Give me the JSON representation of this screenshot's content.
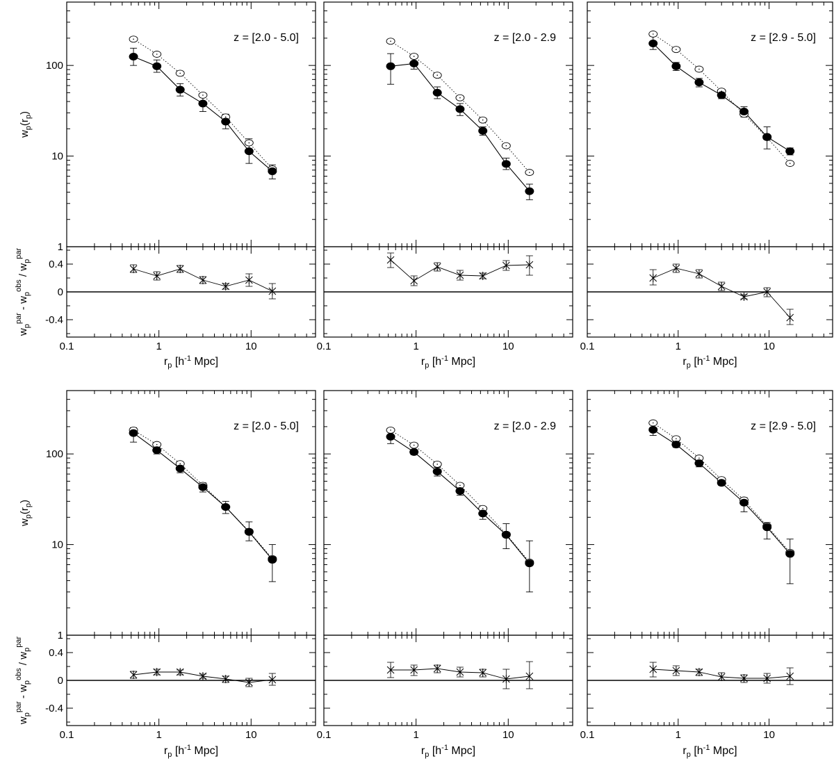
{
  "chart_data": {
    "type": "scatter",
    "x_scale": "log",
    "y_scale": "log",
    "xlim": [
      0.1,
      50
    ],
    "ylim": [
      1,
      500
    ],
    "residual_ylim": [
      -0.65,
      0.65
    ],
    "x_tick_labels": [
      "0.1",
      "1",
      "10"
    ],
    "y_tick_labels": [
      "1",
      "10",
      "100"
    ],
    "residual_tick_labels": [
      "0.4",
      "0",
      "-0.4"
    ],
    "xlabel": {
      "base": "r",
      "sub": "p",
      "text": " [h",
      "sup": "-1",
      "text2": " Mpc]"
    },
    "ylabel": {
      "base": "w",
      "sub": "p",
      "text": "(r",
      "sub2": "p",
      "text2": ")"
    },
    "residual_ylabel": {
      "a": "w",
      "a_sub": "p",
      "a_sup": "par",
      "b": " - w",
      "b_sub": "p",
      "b_sup": "obs",
      "c": " / w",
      "c_sub": "p",
      "c_sup": "par"
    },
    "colors": {
      "axis": "#000000",
      "data": "#000000",
      "open_marker": "#000000"
    },
    "panels": [
      {
        "label": "z = [2.0 - 5.0]",
        "x": [
          0.53,
          0.95,
          1.7,
          3.0,
          5.3,
          9.5,
          17.0
        ],
        "closed": [
          125,
          98,
          54,
          38,
          24,
          11.3,
          6.8
        ],
        "closed_err_up": [
          155,
          115,
          63,
          46,
          29,
          15.5,
          8.0
        ],
        "closed_err_dn": [
          100,
          84,
          46,
          31,
          20,
          8.3,
          5.6
        ],
        "open": [
          195,
          133,
          82,
          47,
          27,
          14,
          7.2
        ],
        "residual": [
          0.33,
          0.23,
          0.33,
          0.17,
          0.08,
          0.17,
          0.01
        ],
        "residual_err_up": [
          0.39,
          0.29,
          0.38,
          0.22,
          0.12,
          0.26,
          0.12
        ],
        "residual_err_dn": [
          0.28,
          0.17,
          0.28,
          0.12,
          0.04,
          0.08,
          -0.1
        ]
      },
      {
        "label": "z = [2.0 - 2.9",
        "x": [
          0.53,
          0.95,
          1.7,
          3.0,
          5.3,
          9.5,
          17.0
        ],
        "closed": [
          98,
          105,
          50,
          33,
          19,
          8.2,
          4.1
        ],
        "closed_err_up": [
          135,
          120,
          58,
          38,
          21,
          9.5,
          4.9
        ],
        "closed_err_dn": [
          62,
          91,
          43,
          28,
          17,
          7.1,
          3.3
        ],
        "open": [
          185,
          126,
          78,
          44,
          25,
          13,
          6.6
        ],
        "residual": [
          0.46,
          0.16,
          0.36,
          0.24,
          0.23,
          0.38,
          0.39
        ],
        "residual_err_up": [
          0.56,
          0.23,
          0.42,
          0.31,
          0.27,
          0.45,
          0.52
        ],
        "residual_err_dn": [
          0.35,
          0.09,
          0.3,
          0.17,
          0.19,
          0.31,
          0.24
        ]
      },
      {
        "label": "z = [2.9 - 5.0]",
        "x": [
          0.53,
          0.95,
          1.7,
          3.0,
          5.3,
          9.5,
          17.0
        ],
        "closed": [
          175,
          98,
          65,
          47,
          31,
          16.3,
          11.3
        ],
        "closed_err_up": [
          210,
          108,
          72,
          51,
          35,
          21,
          12.3
        ],
        "closed_err_dn": [
          150,
          88,
          58,
          43,
          27,
          12,
          10.3
        ],
        "open": [
          222,
          150,
          91,
          52,
          29,
          16,
          8.3
        ],
        "residual": [
          0.2,
          0.34,
          0.26,
          0.08,
          -0.07,
          0.0,
          -0.37
        ],
        "residual_err_up": [
          0.32,
          0.4,
          0.32,
          0.14,
          -0.04,
          0.06,
          -0.25
        ],
        "residual_err_dn": [
          0.1,
          0.28,
          0.2,
          0.02,
          -0.1,
          -0.07,
          -0.47
        ]
      },
      {
        "label": "z = [2.0 - 5.0]",
        "x": [
          0.53,
          0.95,
          1.7,
          3.0,
          5.3,
          9.5,
          17.0
        ],
        "closed": [
          170,
          110,
          69,
          43,
          26,
          13.8,
          6.8
        ],
        "closed_err_up": [
          195,
          120,
          77,
          48,
          30,
          17.8,
          10
        ],
        "closed_err_dn": [
          135,
          100,
          62,
          38,
          22,
          11,
          3.9
        ],
        "open": [
          183,
          127,
          78,
          45,
          26,
          14,
          7
        ],
        "residual": [
          0.08,
          0.12,
          0.12,
          0.06,
          0.02,
          -0.03,
          0.01
        ],
        "residual_err_up": [
          0.13,
          0.16,
          0.15,
          0.09,
          0.06,
          0.03,
          0.1
        ],
        "residual_err_dn": [
          0.03,
          0.08,
          0.08,
          0.03,
          -0.03,
          -0.09,
          -0.07
        ]
      },
      {
        "label": "z = [2.0 - 2.9",
        "x": [
          0.53,
          0.95,
          1.7,
          3.0,
          5.3,
          9.5,
          17.0
        ],
        "closed": [
          155,
          105,
          64,
          39,
          22,
          12.8,
          6.2
        ],
        "closed_err_up": [
          185,
          112,
          71,
          43,
          25,
          17,
          11
        ],
        "closed_err_dn": [
          130,
          98,
          57,
          35,
          19,
          9,
          3
        ],
        "open": [
          183,
          125,
          77,
          45,
          25,
          13,
          6.4
        ],
        "residual": [
          0.15,
          0.15,
          0.17,
          0.12,
          0.11,
          0.02,
          0.06
        ],
        "residual_err_up": [
          0.26,
          0.22,
          0.22,
          0.19,
          0.16,
          0.16,
          0.27
        ],
        "residual_err_dn": [
          0.04,
          0.07,
          0.11,
          0.05,
          0.05,
          -0.12,
          -0.12
        ]
      },
      {
        "label": "z = [2.9 - 5.0]",
        "x": [
          0.53,
          0.95,
          1.7,
          3.0,
          5.3,
          9.5,
          17.0
        ],
        "closed": [
          185,
          127,
          79,
          48,
          29,
          15.5,
          7.9
        ],
        "closed_err_up": [
          210,
          138,
          85,
          52,
          33,
          17.5,
          11.5
        ],
        "closed_err_dn": [
          160,
          118,
          72,
          45,
          23,
          11.5,
          3.7
        ],
        "open": [
          220,
          147,
          90,
          52,
          31,
          16,
          8.2
        ],
        "residual": [
          0.16,
          0.14,
          0.12,
          0.05,
          0.03,
          0.03,
          0.06
        ],
        "residual_err_up": [
          0.26,
          0.21,
          0.16,
          0.11,
          0.08,
          0.1,
          0.18
        ],
        "residual_err_dn": [
          0.05,
          0.07,
          0.07,
          0.0,
          -0.03,
          -0.04,
          -0.06
        ]
      }
    ]
  }
}
